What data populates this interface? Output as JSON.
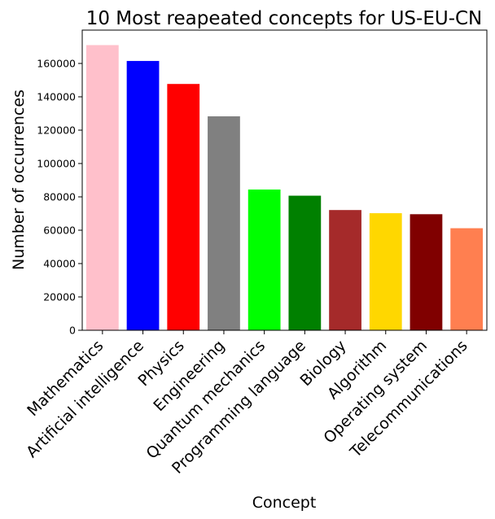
{
  "chart_data": {
    "type": "bar",
    "title": "10 Most reapeated concepts for US-EU-CN",
    "xlabel": "Concept",
    "ylabel": "Number of occurrences",
    "categories": [
      "Mathematics",
      "Artificial intelligence",
      "Physics",
      "Engineering",
      "Quantum mechanics",
      "Programming language",
      "Biology",
      "Algorithm",
      "Operating system",
      "Telecommunications"
    ],
    "values": [
      171000,
      161500,
      147700,
      128300,
      84400,
      80700,
      72100,
      70200,
      69600,
      61200
    ],
    "colors": [
      "#ffc0cb",
      "#0000ff",
      "#ff0000",
      "#808080",
      "#00ff00",
      "#008000",
      "#a52a2a",
      "#ffd700",
      "#800000",
      "#ff7f50"
    ],
    "ylim": [
      0,
      180000
    ],
    "yticks": [
      0,
      20000,
      40000,
      60000,
      80000,
      100000,
      120000,
      140000,
      160000
    ],
    "grid": false,
    "legend": "none"
  }
}
